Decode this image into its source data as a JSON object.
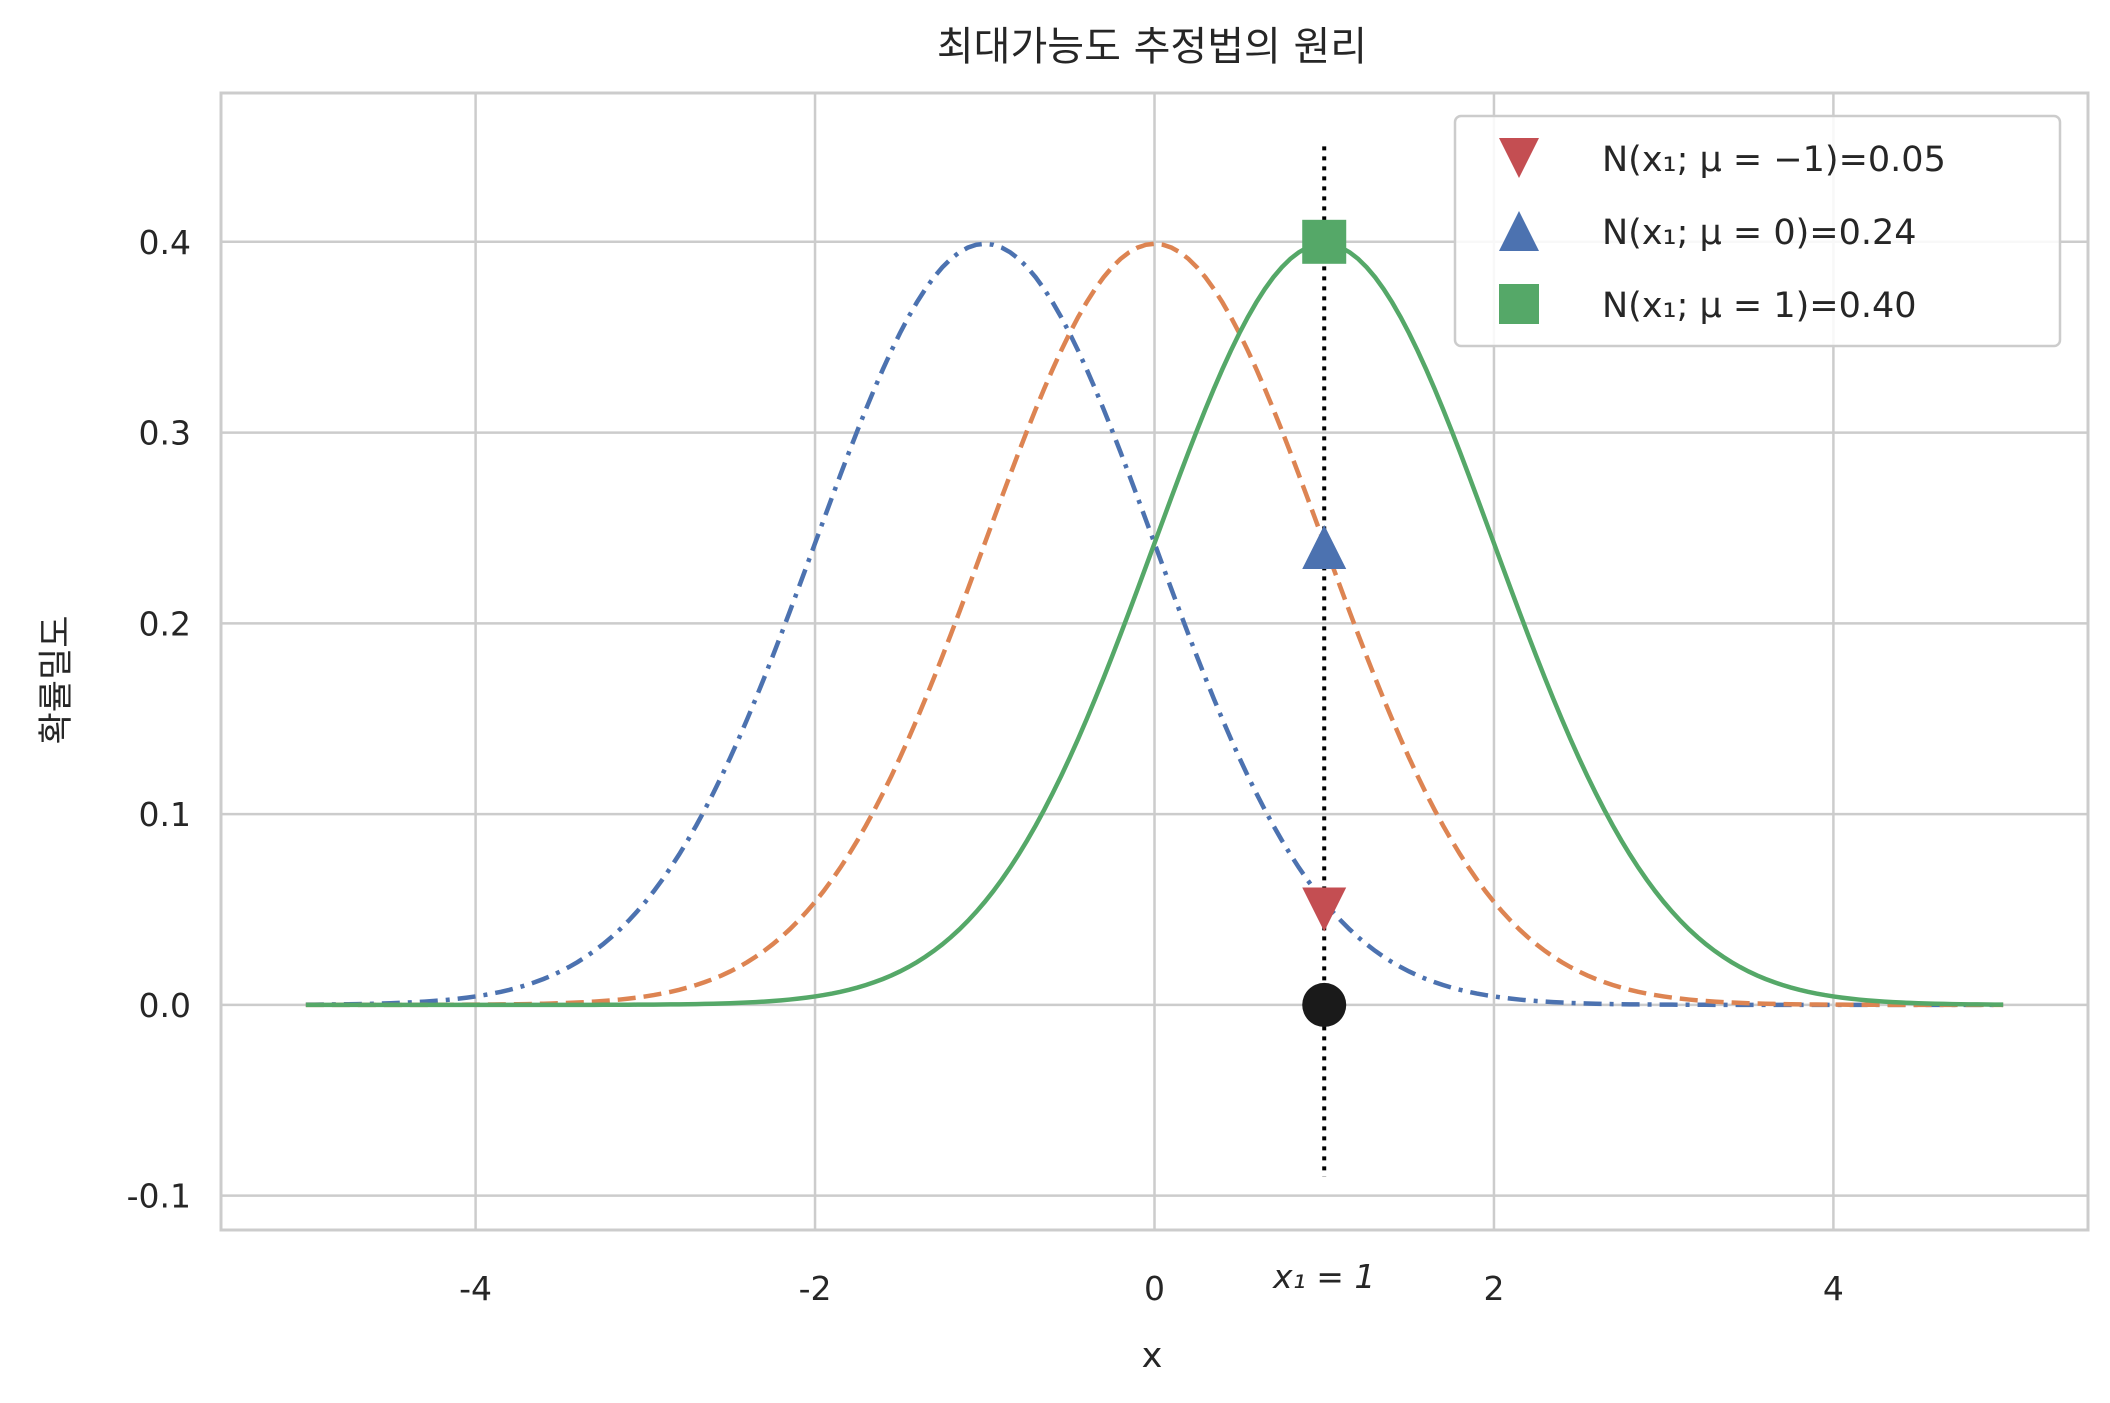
{
  "chart_data": {
    "type": "line",
    "title": "최대가능도 추정법의 원리",
    "xlabel": "x",
    "ylabel": "확률밀도",
    "xlim": [
      -5.5,
      5.5
    ],
    "ylim": [
      -0.118,
      0.478
    ],
    "grid": true,
    "x_ticks": [
      {
        "value": -4,
        "label": "-4"
      },
      {
        "value": -2,
        "label": "-2"
      },
      {
        "value": 0,
        "label": "0"
      },
      {
        "value": 2,
        "label": "2"
      },
      {
        "value": 4,
        "label": "4"
      }
    ],
    "extra_xtick": {
      "value": 1,
      "label": "x₁ = 1"
    },
    "y_ticks": [
      {
        "value": -0.1,
        "label": "-0.1"
      },
      {
        "value": 0.0,
        "label": "0.0"
      },
      {
        "value": 0.1,
        "label": "0.1"
      },
      {
        "value": 0.2,
        "label": "0.2"
      },
      {
        "value": 0.3,
        "label": "0.3"
      },
      {
        "value": 0.4,
        "label": "0.4"
      }
    ],
    "x_range": [
      -5,
      5
    ],
    "series": [
      {
        "mu": -1,
        "sigma": 1,
        "style": "dashdot",
        "color": "#4c72b0"
      },
      {
        "mu": 0,
        "sigma": 1,
        "style": "dashed",
        "color": "#dd8452"
      },
      {
        "mu": 1,
        "sigma": 1,
        "style": "solid",
        "color": "#55a868"
      }
    ],
    "vertical_line": {
      "x": 1,
      "y_from": -0.09,
      "y_to": 0.45,
      "style": "dotted",
      "color": "#000000"
    },
    "observation_point": {
      "x": 1,
      "y": 0.0,
      "color": "#1a1a1a"
    },
    "markers": [
      {
        "x": 1,
        "y": 0.05,
        "shape": "triangle-down",
        "color": "#c44e52",
        "legend": "N(x₁; μ = −1)=0.05"
      },
      {
        "x": 1,
        "y": 0.24,
        "shape": "triangle-up",
        "color": "#4c72b0",
        "legend": "N(x₁; μ = 0)=0.24"
      },
      {
        "x": 1,
        "y": 0.4,
        "shape": "square",
        "color": "#55a868",
        "legend": "N(x₁; μ = 1)=0.40"
      }
    ],
    "legend_position": "top-right"
  }
}
